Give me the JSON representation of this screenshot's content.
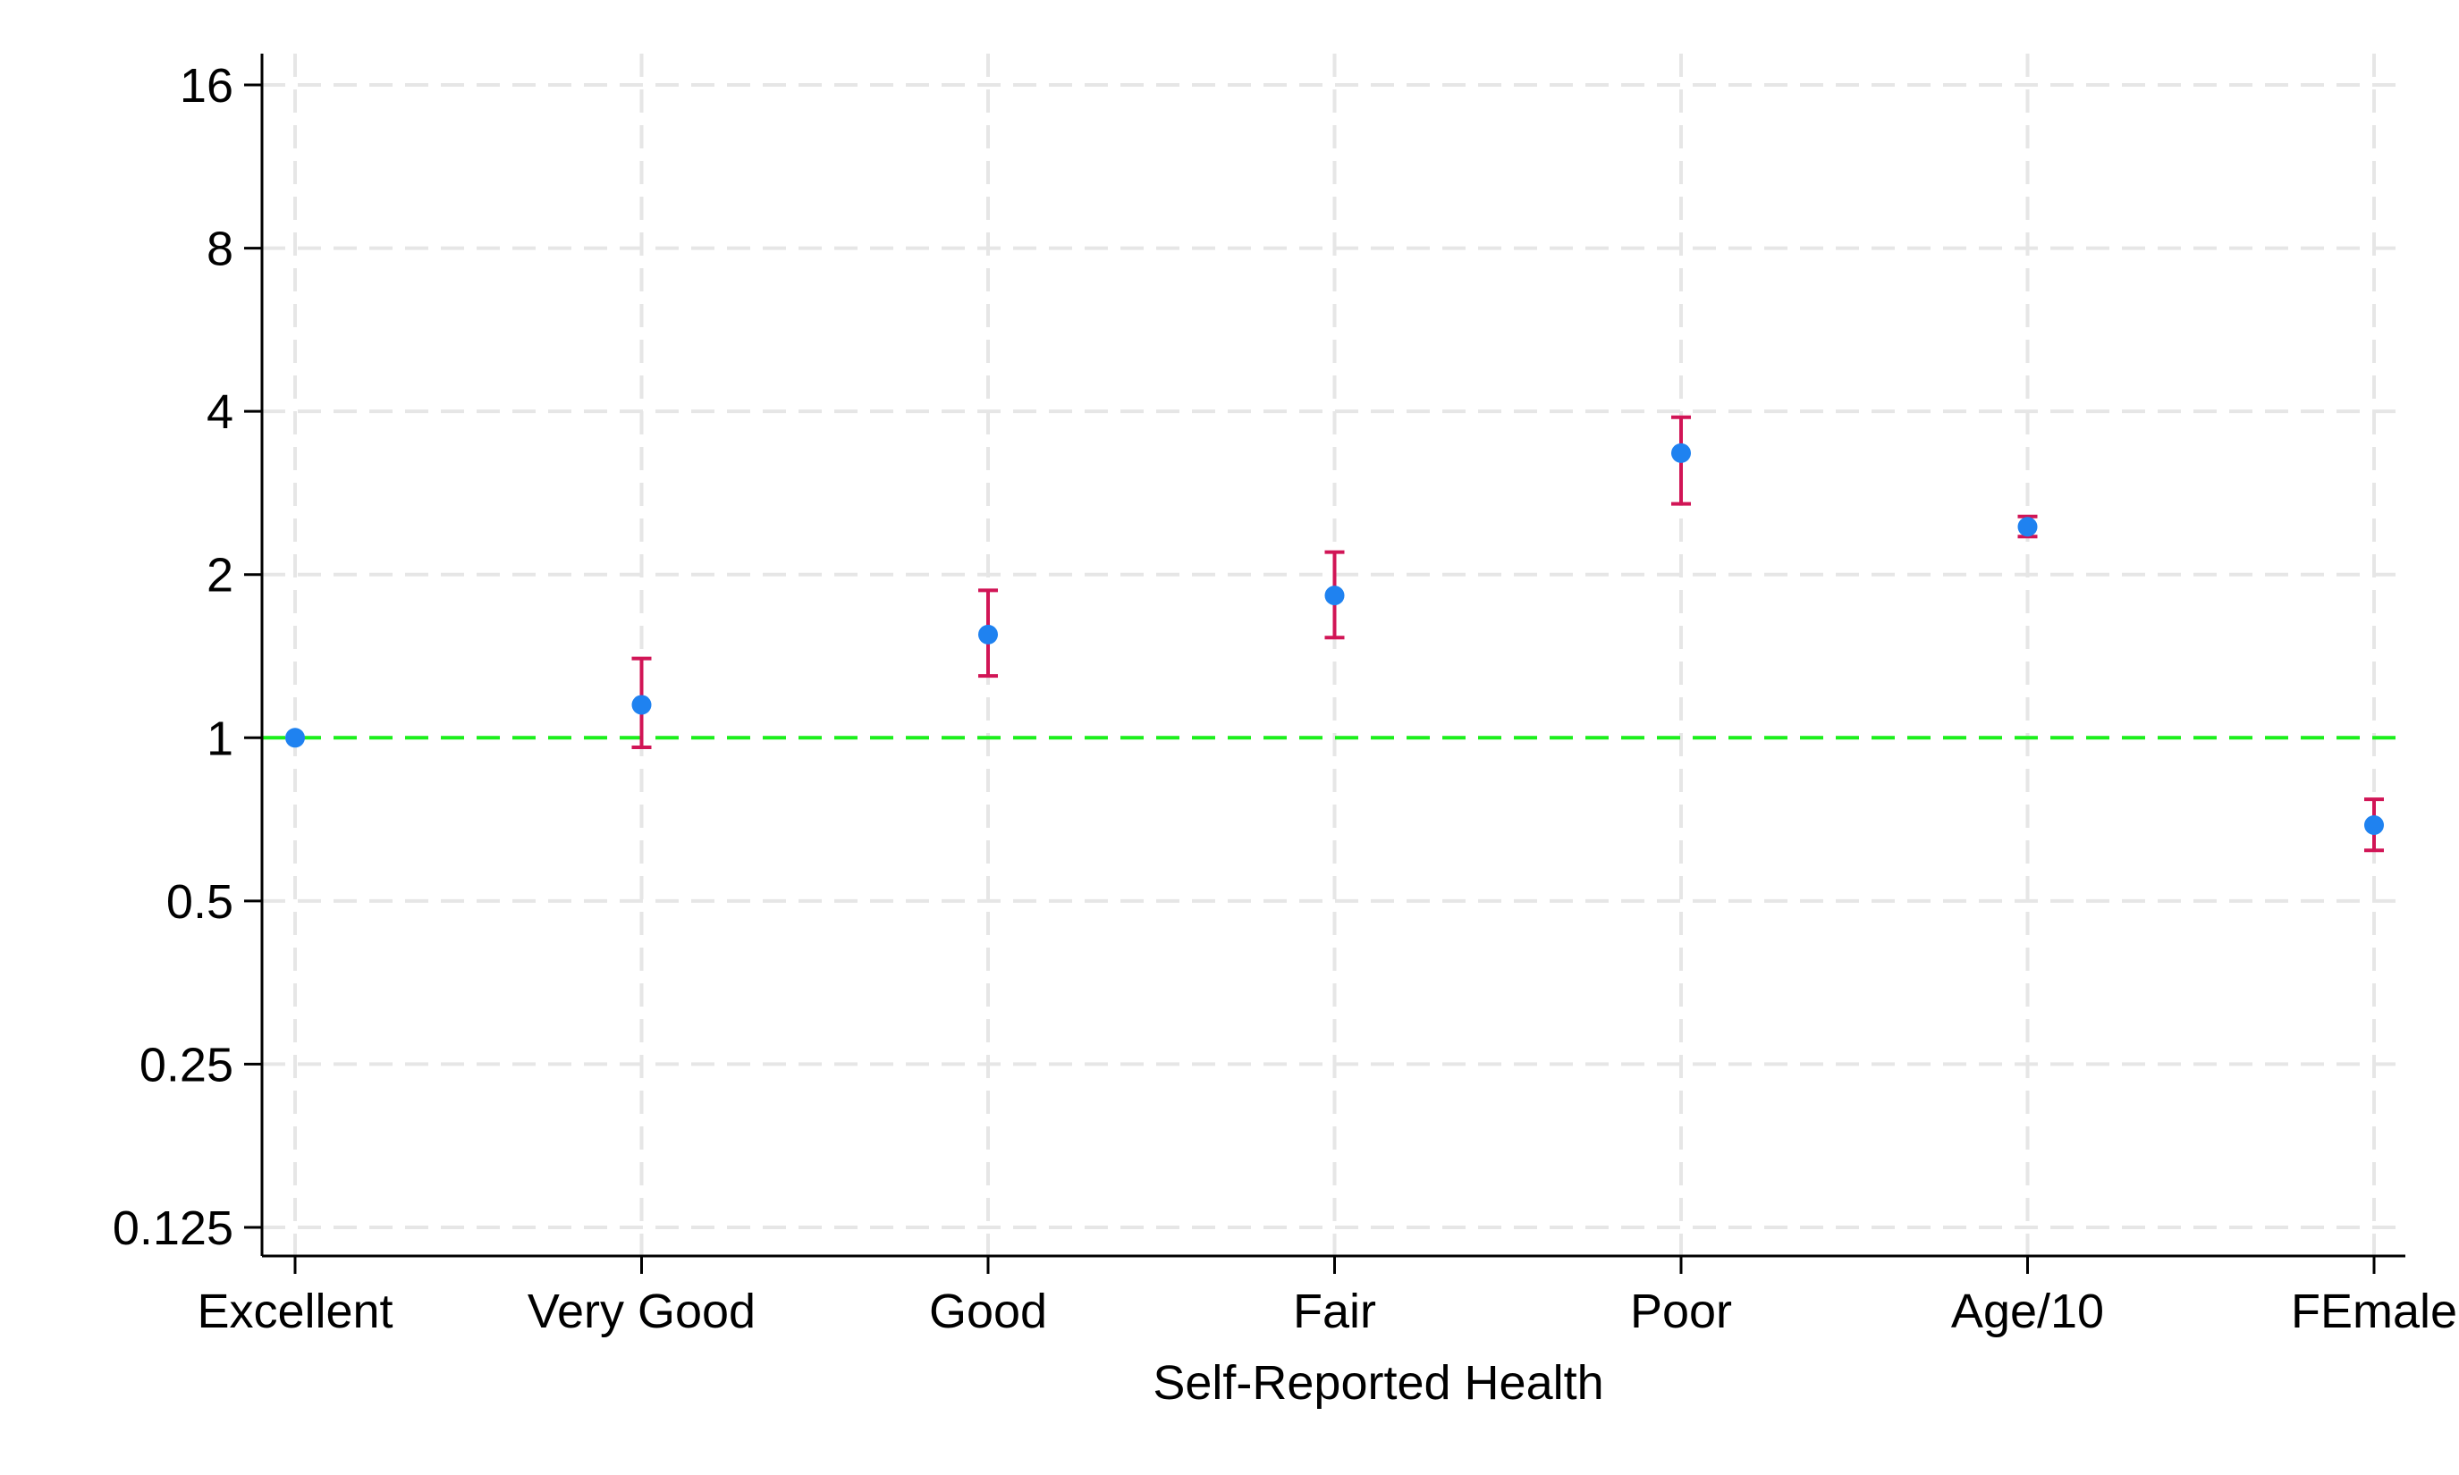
{
  "chart_data": {
    "type": "scatter",
    "title": "",
    "xlabel": "Self-Reported Health",
    "ylabel": "",
    "yscale": "log2",
    "ylim": [
      0.125,
      16
    ],
    "yticks": [
      {
        "value": 0.125,
        "label": "0.125"
      },
      {
        "value": 0.25,
        "label": "0.25"
      },
      {
        "value": 0.5,
        "label": "0.5"
      },
      {
        "value": 1,
        "label": "1"
      },
      {
        "value": 2,
        "label": "2"
      },
      {
        "value": 4,
        "label": "4"
      },
      {
        "value": 8,
        "label": "8"
      },
      {
        "value": 16,
        "label": "16"
      }
    ],
    "categories": [
      "Excellent",
      "Very Good",
      "Good",
      "Fair",
      "Poor",
      "Age/10",
      "FEmale"
    ],
    "series": [
      {
        "estimates": [
          1.0,
          1.15,
          1.55,
          1.83,
          3.35,
          2.45,
          0.69
        ],
        "ci_lower": [
          null,
          0.96,
          1.3,
          1.53,
          2.7,
          2.35,
          0.62
        ],
        "ci_upper": [
          null,
          1.4,
          1.87,
          2.2,
          3.9,
          2.56,
          0.77
        ]
      }
    ],
    "reference_line": {
      "y": 1
    },
    "grid": true,
    "colors": {
      "point": "#1f82f0",
      "errorbar": "#d11556",
      "reference": "#1bf01b",
      "grid": "#e6e6e6",
      "axis": "#000000"
    }
  }
}
